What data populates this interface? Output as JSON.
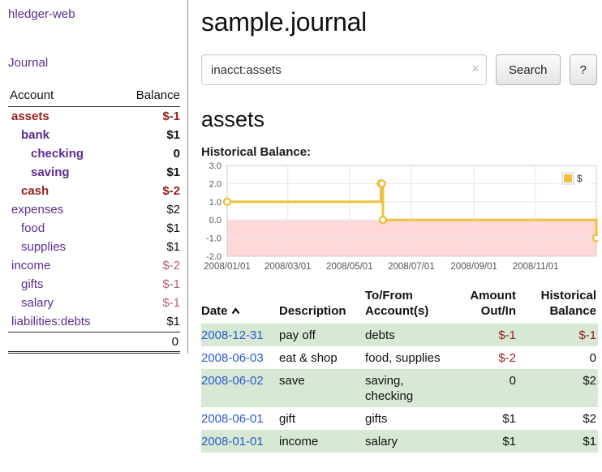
{
  "colors": {
    "link_purple": "#5c2d91",
    "date_link_blue": "#2a5ccc",
    "negative_strong_red": "#941f1f",
    "negative_soft_red": "#b4636d",
    "row_shade_green": "#d7e9d4",
    "chart_series_gold": "#edc240",
    "chart_negative_region_pink": "#ffd9d9"
  },
  "sidebar": {
    "brand": "hledger-web",
    "journal_label": "Journal",
    "header_account": "Account",
    "header_balance": "Balance",
    "accounts": [
      {
        "name": "assets",
        "balance": "$-1",
        "level": 1,
        "bold": true
      },
      {
        "name": "bank",
        "balance": "$1",
        "level": 2,
        "bold": true
      },
      {
        "name": "checking",
        "balance": "0",
        "level": 3,
        "bold": true
      },
      {
        "name": "saving",
        "balance": "$1",
        "level": 3,
        "bold": true
      },
      {
        "name": "cash",
        "balance": "$-2",
        "level": 2,
        "bold": true
      },
      {
        "name": "expenses",
        "balance": "$2",
        "level": 1,
        "bold": false
      },
      {
        "name": "food",
        "balance": "$1",
        "level": 2,
        "bold": false
      },
      {
        "name": "supplies",
        "balance": "$1",
        "level": 2,
        "bold": false
      },
      {
        "name": "income",
        "balance": "$-2",
        "level": 1,
        "bold": false
      },
      {
        "name": "gifts",
        "balance": "$-1",
        "level": 2,
        "bold": false
      },
      {
        "name": "salary",
        "balance": "$-1",
        "level": 2,
        "bold": false
      },
      {
        "name": "liabilities:debts",
        "balance": "$1",
        "level": 1,
        "bold": false
      }
    ],
    "total": "0"
  },
  "main": {
    "title": "sample.journal",
    "search": {
      "value": "inacct:assets",
      "clear_icon": "×",
      "button_label": "Search",
      "help_label": "?"
    },
    "heading": "assets",
    "chart_label": "Historical Balance:"
  },
  "chart_data": {
    "type": "line",
    "step": true,
    "title": "Historical Balance",
    "series": [
      {
        "name": "$",
        "color": "#edc240",
        "points": [
          [
            "2008-01-01",
            1
          ],
          [
            "2008-06-01",
            2
          ],
          [
            "2008-06-02",
            2
          ],
          [
            "2008-06-03",
            0
          ],
          [
            "2008-12-31",
            -1
          ]
        ]
      }
    ],
    "x_ticks": [
      "2008/01/01",
      "2008/03/01",
      "2008/05/01",
      "2008/07/01",
      "2008/09/01",
      "2008/11/01"
    ],
    "y_ticks": [
      "3.0",
      "2.0",
      "1.0",
      "0.0",
      "-1.0",
      "-2.0"
    ],
    "ylim": [
      -2,
      3
    ],
    "xlim": [
      "2008/01/01",
      "2008/12/31"
    ],
    "grid": true,
    "negative_region_color": "#ffd9d9",
    "legend": {
      "label": "$",
      "position": "top-right"
    }
  },
  "register": {
    "columns": [
      {
        "label": "Date",
        "align": "left",
        "sorted": "asc"
      },
      {
        "label": "Description",
        "align": "left"
      },
      {
        "label": "To/From Account(s)",
        "align": "left"
      },
      {
        "label": "Amount Out/In",
        "align": "right"
      },
      {
        "label": "Historical Balance",
        "align": "right"
      }
    ],
    "rows": [
      {
        "date": "2008-12-31",
        "description": "pay off",
        "accounts": "debts",
        "amount": "$-1",
        "balance": "$-1"
      },
      {
        "date": "2008-06-03",
        "description": "eat & shop",
        "accounts": "food, supplies",
        "amount": "$-2",
        "balance": "0"
      },
      {
        "date": "2008-06-02",
        "description": "save",
        "accounts": "saving, checking",
        "amount": "0",
        "balance": "$2"
      },
      {
        "date": "2008-06-01",
        "description": "gift",
        "accounts": "gifts",
        "amount": "$1",
        "balance": "$2"
      },
      {
        "date": "2008-01-01",
        "description": "income",
        "accounts": "salary",
        "amount": "$1",
        "balance": "$1"
      }
    ]
  }
}
